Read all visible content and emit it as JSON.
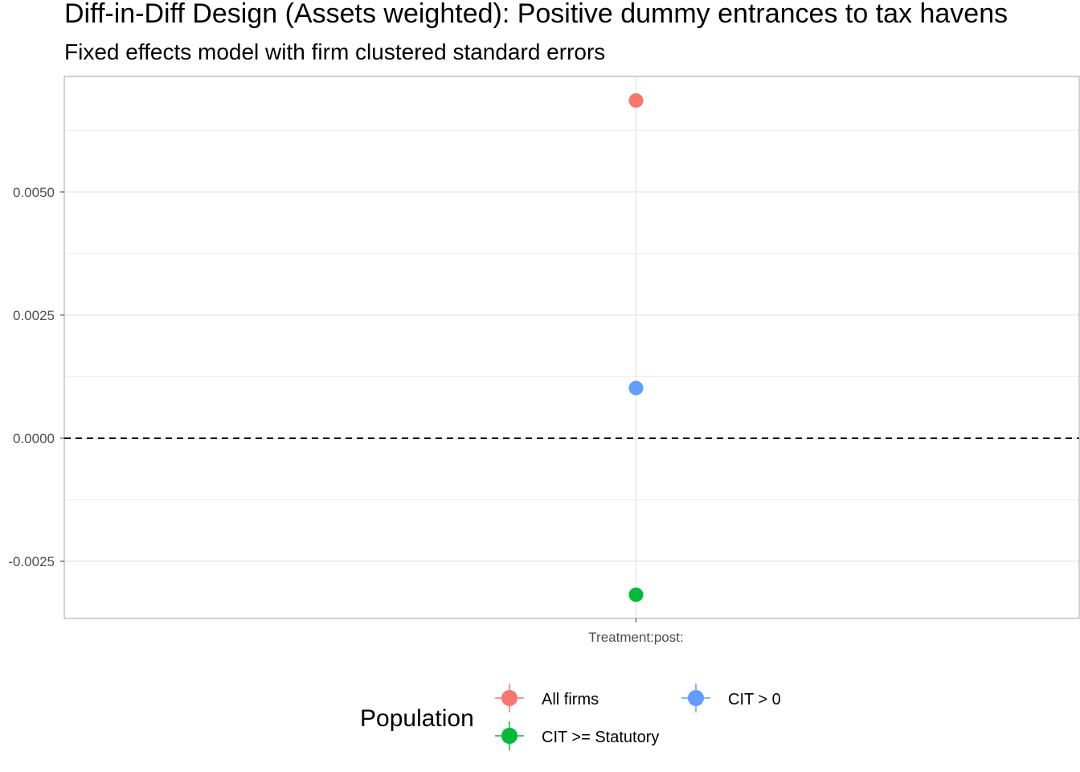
{
  "chart_data": {
    "type": "scatter",
    "title": "Diff-in-Diff Design (Assets weighted): Positive dummy entrances to tax havens",
    "subtitle": "Fixed effects model with firm clustered standard errors",
    "xlabel": "",
    "ylabel": "",
    "categories": [
      "Treatment:post:"
    ],
    "y_ticks": [
      -0.0025,
      0.0,
      0.0025,
      0.005
    ],
    "y_tick_labels": [
      "-0.0025",
      "0.0000",
      "0.0025",
      "0.0050"
    ],
    "ylim": [
      -0.00366,
      0.00735
    ],
    "grid": true,
    "reference_line": {
      "y": 0,
      "style": "dashed",
      "color": "#000000"
    },
    "legend": {
      "title": "Population",
      "placement": "bottom"
    },
    "series": [
      {
        "name": "All firms",
        "color": "#F8766D",
        "values": [
          0.00686
        ]
      },
      {
        "name": "CIT >= Statutory",
        "color": "#00BA38",
        "values": [
          -0.00318
        ]
      },
      {
        "name": "CIT > 0",
        "color": "#619CFF",
        "values": [
          0.00102
        ]
      }
    ]
  }
}
